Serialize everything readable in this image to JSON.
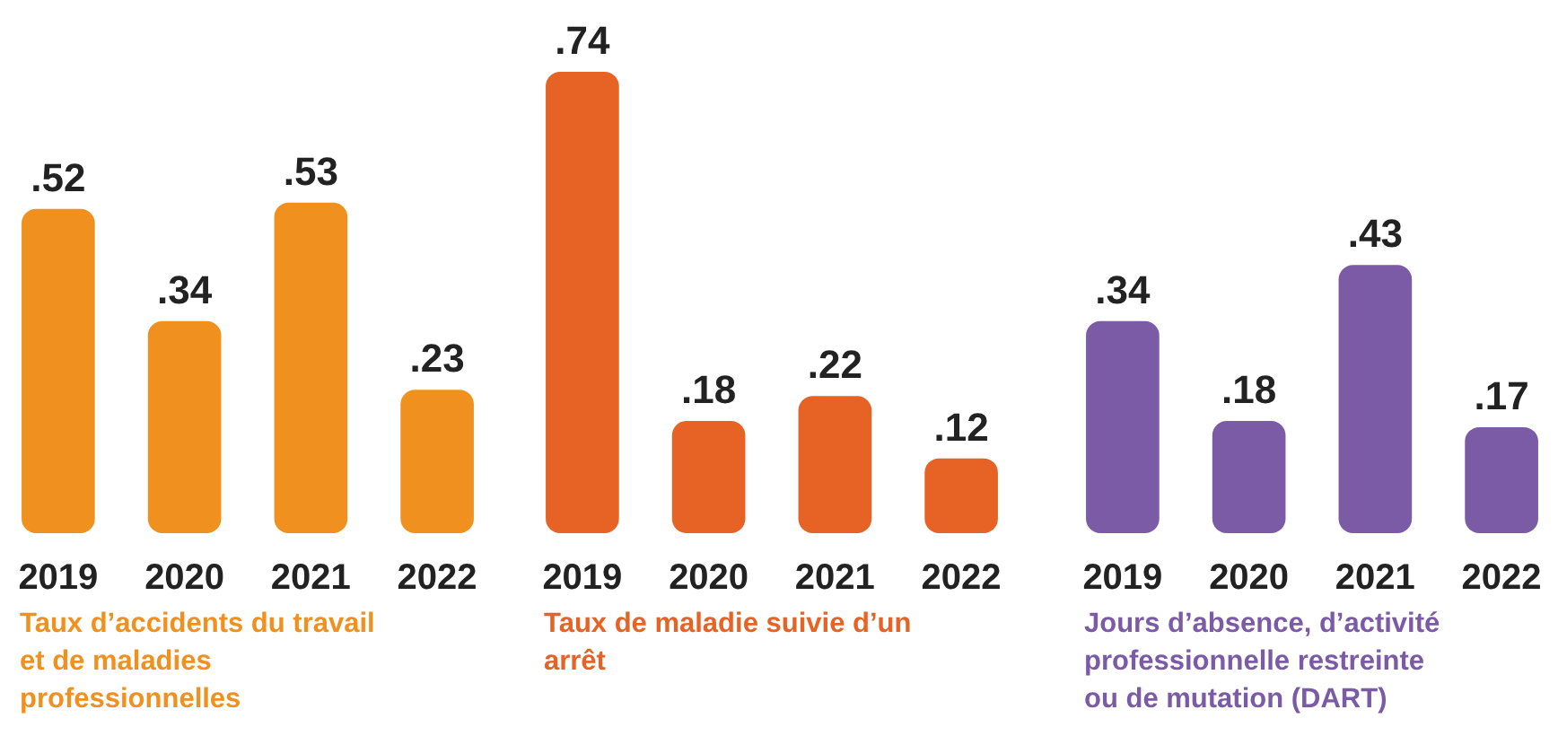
{
  "chart_data": [
    {
      "type": "bar",
      "title": "Taux d’accidents du travail et de maladies professionnelles",
      "categories": [
        "2019",
        "2020",
        "2021",
        "2022"
      ],
      "values": [
        0.52,
        0.34,
        0.53,
        0.23
      ],
      "color": "#f0901e",
      "value_labels": [
        ".52",
        ".34",
        ".53",
        ".23"
      ]
    },
    {
      "type": "bar",
      "title": "Taux de maladie suivie d’un arrêt",
      "categories": [
        "2019",
        "2020",
        "2021",
        "2022"
      ],
      "values": [
        0.74,
        0.18,
        0.22,
        0.12
      ],
      "color": "#e66225",
      "value_labels": [
        ".74",
        ".18",
        ".22",
        ".12"
      ]
    },
    {
      "type": "bar",
      "title": "Jours d’absence, d’activité professionnelle restreinte ou de mutation (DART)",
      "categories": [
        "2019",
        "2020",
        "2021",
        "2022"
      ],
      "values": [
        0.34,
        0.18,
        0.43,
        0.17
      ],
      "color": "#7b5aa6",
      "value_labels": [
        ".34",
        ".18",
        ".43",
        ".17"
      ]
    }
  ]
}
